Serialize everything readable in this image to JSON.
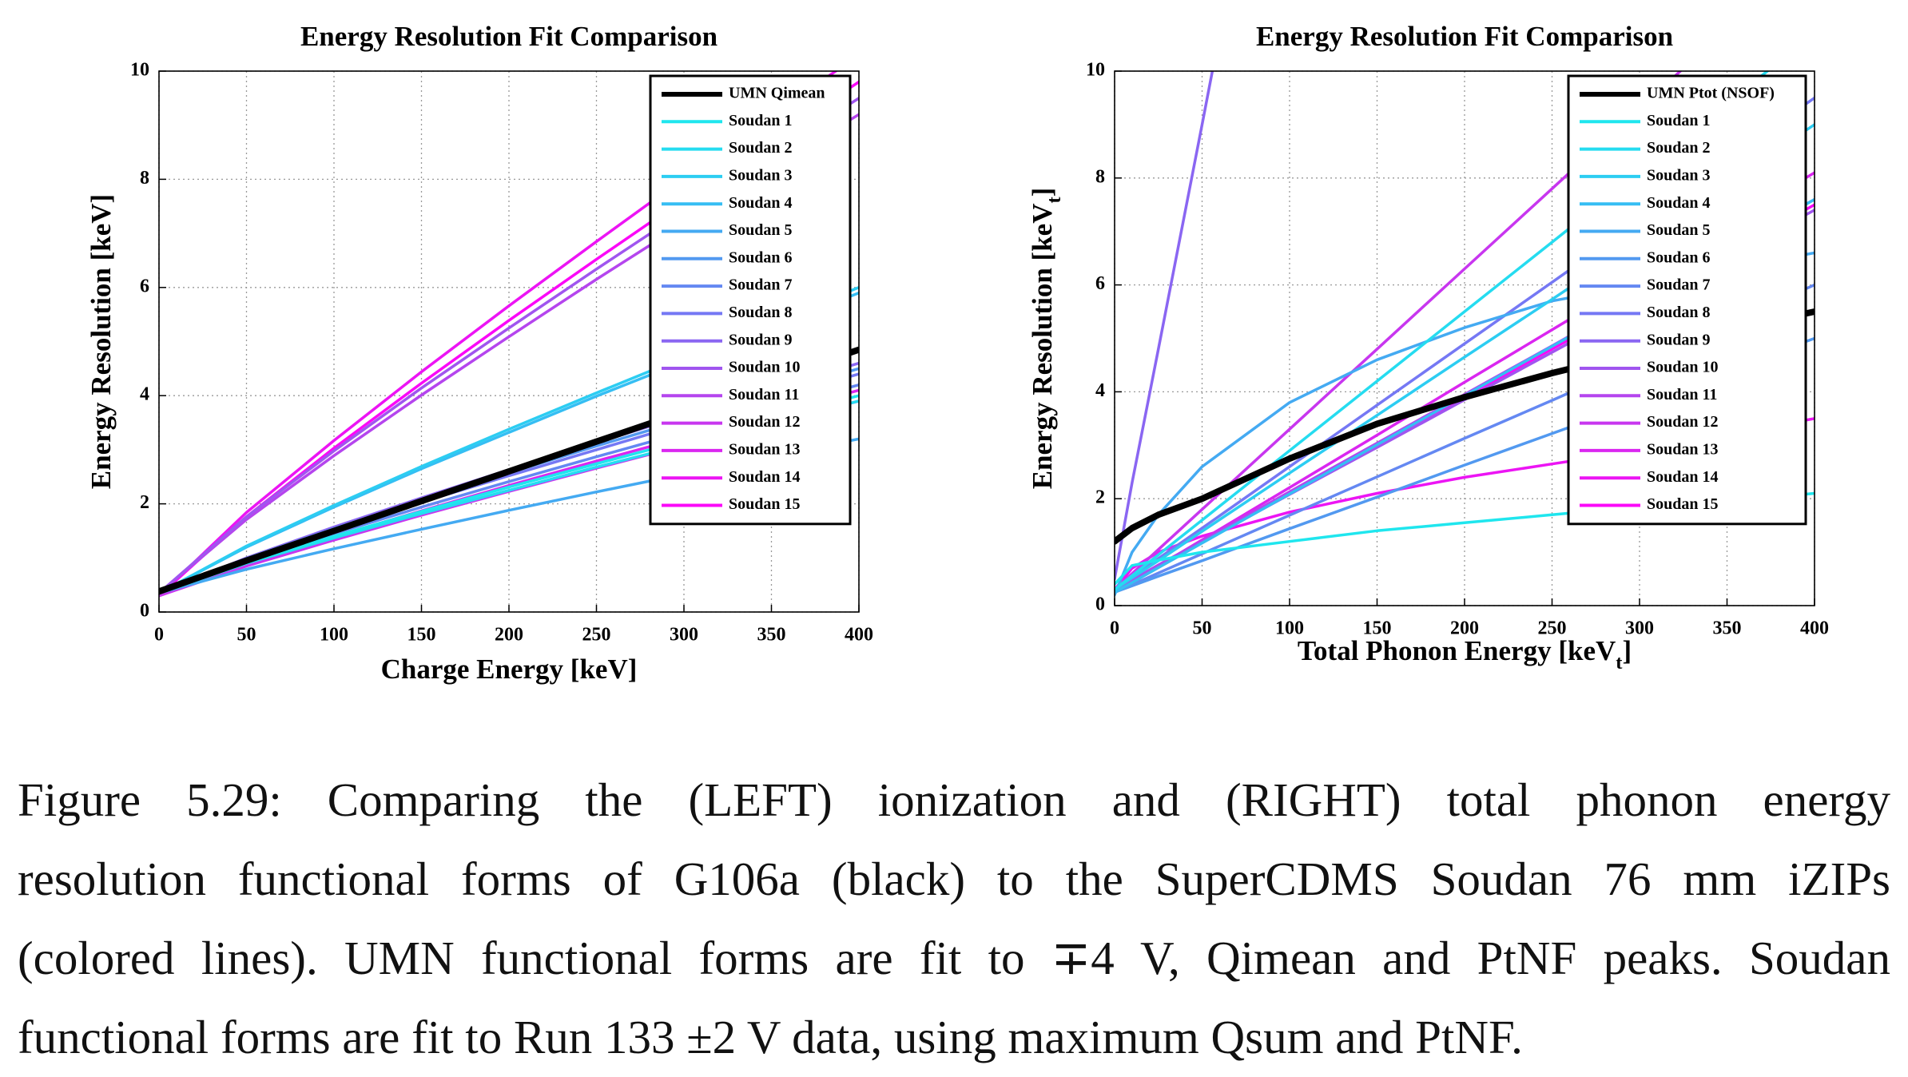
{
  "chart_data": [
    {
      "type": "line",
      "title": "Energy Resolution Fit Comparison",
      "xlabel": [
        "Charge Energy [keV]"
      ],
      "ylabel": [
        "Energy Resolution [keV]"
      ],
      "x": [
        0,
        50,
        100,
        150,
        200,
        250,
        300,
        350,
        400
      ],
      "xlim": [
        0,
        400
      ],
      "ylim": [
        0,
        10
      ],
      "xticks": [
        0,
        50,
        100,
        150,
        200,
        250,
        300,
        350,
        400
      ],
      "yticks": [
        0,
        2,
        4,
        6,
        8,
        10
      ],
      "grid": true,
      "series": [
        {
          "name": "UMN Qimean",
          "color": "#000000",
          "values": [
            0.38,
            0.95,
            1.5,
            2.05,
            2.6,
            3.15,
            3.7,
            4.3,
            4.85
          ]
        },
        {
          "name": "Soudan 1",
          "color": "#1fe6ee",
          "values": [
            0.35,
            0.91,
            1.4,
            1.86,
            2.31,
            2.74,
            3.17,
            3.59,
            4.0
          ]
        },
        {
          "name": "Soudan 2",
          "color": "#25dcf0",
          "values": [
            0.35,
            0.9,
            1.37,
            1.82,
            2.25,
            2.68,
            3.09,
            3.5,
            3.9
          ]
        },
        {
          "name": "Soudan 3",
          "color": "#2ccdf2",
          "values": [
            0.35,
            1.22,
            1.97,
            2.69,
            3.38,
            4.05,
            4.71,
            5.36,
            6.0
          ]
        },
        {
          "name": "Soudan 4",
          "color": "#36bef3",
          "values": [
            0.35,
            1.2,
            1.94,
            2.65,
            3.32,
            3.99,
            4.63,
            5.27,
            5.9
          ]
        },
        {
          "name": "Soudan 5",
          "color": "#44aaf2",
          "values": [
            0.35,
            0.79,
            1.17,
            1.53,
            1.88,
            2.22,
            2.55,
            2.88,
            3.2
          ]
        },
        {
          "name": "Soudan 6",
          "color": "#5299f0",
          "values": [
            0.35,
            0.99,
            1.54,
            2.07,
            2.57,
            3.07,
            3.55,
            4.03,
            4.5
          ]
        },
        {
          "name": "Soudan 7",
          "color": "#6488f2",
          "values": [
            0.35,
            0.94,
            1.45,
            1.94,
            2.41,
            2.87,
            3.32,
            3.76,
            4.2
          ]
        },
        {
          "name": "Soudan 8",
          "color": "#7578f4",
          "values": [
            0.35,
            0.97,
            1.51,
            2.03,
            2.52,
            3.0,
            3.48,
            3.94,
            4.4
          ]
        },
        {
          "name": "Soudan 9",
          "color": "#8a66f2",
          "values": [
            0.35,
            1.0,
            1.57,
            2.11,
            2.63,
            3.13,
            3.63,
            4.12,
            4.6
          ]
        },
        {
          "name": "Soudan 10",
          "color": "#a055ef",
          "values": [
            0.35,
            1.76,
            2.98,
            4.14,
            5.25,
            6.34,
            7.41,
            8.47,
            9.5
          ]
        },
        {
          "name": "Soudan 11",
          "color": "#b545ee",
          "values": [
            0.35,
            1.71,
            2.89,
            4.01,
            5.09,
            6.15,
            7.18,
            8.2,
            9.2
          ]
        },
        {
          "name": "Soudan 12",
          "color": "#c836ef",
          "values": [
            0.3,
            0.85,
            1.33,
            1.79,
            2.23,
            2.66,
            3.08,
            3.49,
            3.9
          ]
        },
        {
          "name": "Soudan 13",
          "color": "#da26f0",
          "values": [
            0.3,
            0.89,
            1.39,
            1.87,
            2.34,
            2.79,
            3.23,
            3.67,
            4.1
          ]
        },
        {
          "name": "Soudan 14",
          "color": "#ec14f4",
          "values": [
            0.3,
            1.84,
            3.17,
            4.44,
            5.66,
            6.85,
            8.02,
            9.17,
            10.3
          ]
        },
        {
          "name": "Soudan 15",
          "color": "#fb08f8",
          "values": [
            0.3,
            1.76,
            3.03,
            4.23,
            5.39,
            6.52,
            7.63,
            8.73,
            9.8
          ]
        }
      ]
    },
    {
      "type": "line",
      "title": "Energy Resolution Fit Comparison",
      "xlabel": [
        "Total Phonon Energy [keV",
        "t",
        "]"
      ],
      "ylabel": [
        "Energy Resolution [keV",
        "t",
        "]"
      ],
      "x": [
        0,
        10,
        25,
        50,
        100,
        150,
        200,
        250,
        300,
        350,
        400
      ],
      "xlim": [
        0,
        400
      ],
      "ylim": [
        0,
        10
      ],
      "xticks": [
        0,
        50,
        100,
        150,
        200,
        250,
        300,
        350,
        400
      ],
      "yticks": [
        0,
        2,
        4,
        6,
        8,
        10
      ],
      "grid": true,
      "series": [
        {
          "name": "UMN Ptot (NSOF)",
          "color": "#000000",
          "values": [
            1.2,
            1.45,
            1.7,
            2.0,
            2.75,
            3.4,
            3.9,
            4.35,
            4.75,
            5.15,
            5.5
          ]
        },
        {
          "name": "Soudan 1",
          "color": "#1fe6ee",
          "values": [
            0.4,
            0.75,
            0.85,
            1.0,
            1.2,
            1.4,
            1.55,
            1.7,
            1.85,
            1.95,
            2.1
          ]
        },
        {
          "name": "Soudan 2",
          "color": "#25dcf0",
          "values": [
            0.3,
            0.56,
            0.95,
            1.6,
            2.9,
            4.2,
            5.5,
            6.8,
            8.1,
            9.4,
            10.7
          ]
        },
        {
          "name": "Soudan 3",
          "color": "#2ccdf2",
          "values": [
            0.3,
            0.52,
            0.84,
            1.39,
            2.48,
            3.56,
            4.65,
            5.73,
            6.82,
            7.91,
            9.0
          ]
        },
        {
          "name": "Soudan 4",
          "color": "#36bef3",
          "values": [
            0.25,
            0.43,
            0.71,
            1.17,
            2.09,
            3.01,
            3.93,
            4.85,
            5.76,
            6.68,
            7.6
          ]
        },
        {
          "name": "Soudan 5",
          "color": "#44aaf2",
          "values": [
            0.2,
            1.0,
            1.7,
            2.6,
            3.8,
            4.6,
            5.2,
            5.7,
            6.0,
            6.3,
            6.6
          ]
        },
        {
          "name": "Soudan 6",
          "color": "#5299f0",
          "values": [
            0.25,
            0.37,
            0.55,
            0.84,
            1.44,
            2.03,
            2.63,
            3.22,
            3.81,
            4.41,
            5.0
          ]
        },
        {
          "name": "Soudan 7",
          "color": "#6488f2",
          "values": [
            0.25,
            0.39,
            0.61,
            0.97,
            1.69,
            2.41,
            3.13,
            3.84,
            4.56,
            5.28,
            6.0
          ]
        },
        {
          "name": "Soudan 8",
          "color": "#7578f4",
          "values": [
            0.3,
            0.53,
            0.88,
            1.45,
            2.6,
            3.75,
            4.9,
            6.05,
            7.2,
            8.35,
            9.5
          ]
        },
        {
          "name": "Soudan 9",
          "color": "#8a66f2",
          "values": [
            0.5,
            2.3,
            4.8,
            9.0,
            17.5,
            null,
            null,
            null,
            null,
            null,
            null
          ]
        },
        {
          "name": "Soudan 10",
          "color": "#a055ef",
          "values": [
            0.3,
            0.48,
            0.74,
            1.19,
            2.08,
            2.96,
            3.85,
            4.74,
            5.63,
            6.51,
            7.4
          ]
        },
        {
          "name": "Soudan 11",
          "color": "#b545ee",
          "values": [
            0.3,
            0.48,
            0.76,
            1.21,
            2.13,
            3.04,
            3.95,
            4.86,
            5.78,
            6.69,
            7.6
          ]
        },
        {
          "name": "Soudan 12",
          "color": "#c836ef",
          "values": [
            0.3,
            0.6,
            1.05,
            1.8,
            3.3,
            4.8,
            6.3,
            7.8,
            9.3,
            10.8,
            12.3
          ]
        },
        {
          "name": "Soudan 13",
          "color": "#da26f0",
          "values": [
            0.25,
            0.45,
            0.74,
            1.23,
            2.21,
            3.19,
            4.18,
            5.16,
            6.14,
            7.12,
            8.1
          ]
        },
        {
          "name": "Soudan 14",
          "color": "#ec14f4",
          "values": [
            0.3,
            0.7,
            1.0,
            1.3,
            1.75,
            2.1,
            2.4,
            2.65,
            2.9,
            3.2,
            3.5
          ]
        },
        {
          "name": "Soudan 15",
          "color": "#fb08f8",
          "values": [
            0.3,
            0.48,
            0.75,
            1.2,
            2.1,
            3.0,
            3.9,
            4.8,
            5.7,
            6.6,
            7.5
          ]
        }
      ]
    }
  ],
  "caption": [
    "Figure 5.29: Comparing the (LEFT) ionization and (RIGHT) total phonon energy",
    "resolution functional forms of G106a (black) to the SuperCDMS Soudan 76 mm iZIPs",
    "(colored lines). UMN functional forms are fit to ∓4 V, Qimean and PtNF peaks. Soudan",
    "functional forms are fit to Run 133 ±2 V data, using maximum Qsum and PtNF."
  ]
}
